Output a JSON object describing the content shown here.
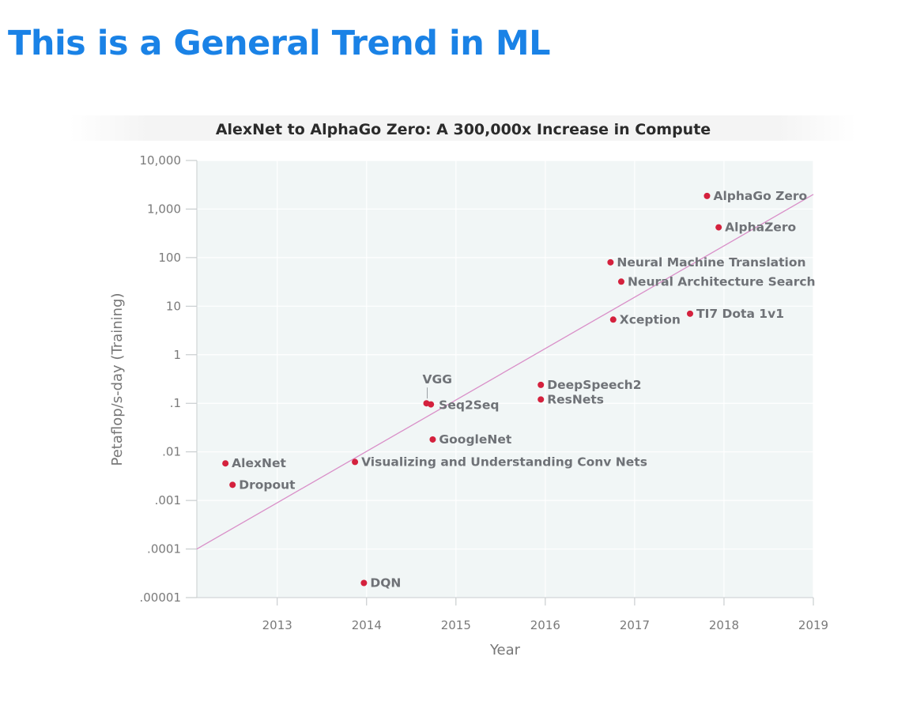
{
  "slide": {
    "title": "This is a General Trend in ML"
  },
  "chart_data": {
    "type": "scatter",
    "title": "AlexNet to AlphaGo Zero: A 300,000x Increase in Compute",
    "xlabel": "Year",
    "ylabel": "Petaflop/s-day (Training)",
    "y_scale": "log",
    "xlim": [
      2012.1,
      2019
    ],
    "ylim": [
      1e-05,
      10000
    ],
    "x_ticks": [
      {
        "value": 2013,
        "label": "2013"
      },
      {
        "value": 2014,
        "label": "2014"
      },
      {
        "value": 2015,
        "label": "2015"
      },
      {
        "value": 2016,
        "label": "2016"
      },
      {
        "value": 2017,
        "label": "2017"
      },
      {
        "value": 2018,
        "label": "2018"
      },
      {
        "value": 2019,
        "label": "2019"
      }
    ],
    "y_ticks": [
      {
        "value": 10000,
        "label": "10,000"
      },
      {
        "value": 1000,
        "label": "1,000"
      },
      {
        "value": 100,
        "label": "100"
      },
      {
        "value": 10,
        "label": "10"
      },
      {
        "value": 1,
        "label": "1"
      },
      {
        "value": 0.1,
        "label": ".1"
      },
      {
        "value": 0.01,
        "label": ".01"
      },
      {
        "value": 0.001,
        "label": ".001"
      },
      {
        "value": 0.0001,
        "label": ".0001"
      },
      {
        "value": 1e-05,
        "label": ".00001"
      }
    ],
    "grid": true,
    "background_color": "#f1f6f6",
    "point_color": "#d4213d",
    "trend_color": "#d98fc8",
    "trendline": {
      "x": [
        2012.1,
        2019
      ],
      "y": [
        0.0001,
        2000
      ]
    },
    "points": [
      {
        "label": "AlexNet",
        "x": 2012.42,
        "y": 0.0058
      },
      {
        "label": "Dropout",
        "x": 2012.5,
        "y": 0.0021
      },
      {
        "label": "DQN",
        "x": 2013.97,
        "y": 2e-05
      },
      {
        "label": "Visualizing and Understanding Conv Nets",
        "x": 2013.87,
        "y": 0.0062
      },
      {
        "label": "VGG",
        "x": 2014.67,
        "y": 0.1
      },
      {
        "label": "Seq2Seq",
        "x": 2014.72,
        "y": 0.095
      },
      {
        "label": "GoogleNet",
        "x": 2014.74,
        "y": 0.018
      },
      {
        "label": "DeepSpeech2",
        "x": 2015.95,
        "y": 0.24
      },
      {
        "label": "ResNets",
        "x": 2015.95,
        "y": 0.12
      },
      {
        "label": "Neural Machine Translation",
        "x": 2016.73,
        "y": 80
      },
      {
        "label": "Neural Architecture Search",
        "x": 2016.85,
        "y": 32
      },
      {
        "label": "Xception",
        "x": 2016.76,
        "y": 5.3
      },
      {
        "label": "TI7 Dota 1v1",
        "x": 2017.62,
        "y": 7
      },
      {
        "label": "AlphaGo Zero",
        "x": 2017.81,
        "y": 1860
      },
      {
        "label": "AlphaZero",
        "x": 2017.94,
        "y": 420
      }
    ]
  }
}
